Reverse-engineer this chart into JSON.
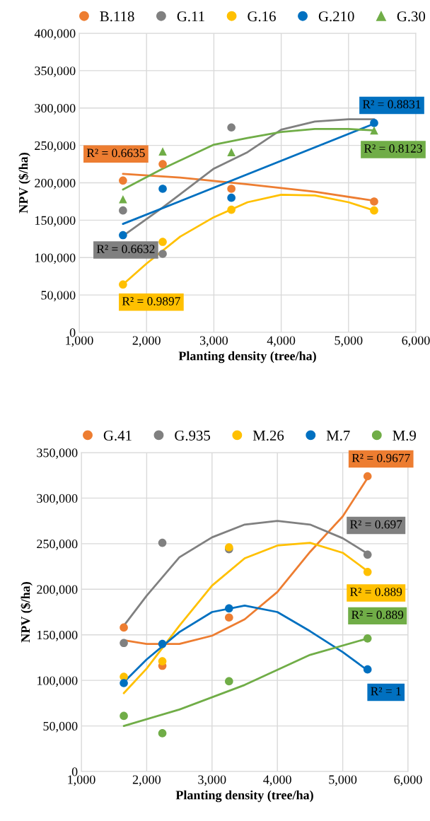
{
  "chart_data": [
    {
      "type": "scatter",
      "xlabel": "Planting density (tree/ha)",
      "ylabel": "NPV ($/ha)",
      "grid": true,
      "legend": "top",
      "xlim": [
        1000,
        6000
      ],
      "ylim": [
        0,
        400000
      ],
      "xticks": [
        {
          "value": 1000,
          "label": "1,000"
        },
        {
          "value": 2000,
          "label": "2,000"
        },
        {
          "value": 3000,
          "label": "3,000"
        },
        {
          "value": 4000,
          "label": "4,000"
        },
        {
          "value": 5000,
          "label": "5,000"
        },
        {
          "value": 6000,
          "label": "6,000"
        }
      ],
      "yticks": [
        0,
        {
          "value": 50000,
          "label": "50,000"
        },
        {
          "value": 100000,
          "label": "100,000"
        },
        {
          "value": 150000,
          "label": "150,000"
        },
        {
          "value": 200000,
          "label": "200,000"
        },
        {
          "value": 250000,
          "label": "250,000"
        },
        {
          "value": 300000,
          "label": "300,000"
        },
        {
          "value": 350000,
          "label": "350,000"
        },
        {
          "value": 400000,
          "label": "400,000"
        }
      ],
      "x": [
        1650,
        2240,
        3260,
        5380
      ],
      "series": [
        {
          "name": "B.118",
          "color": "#ed7d31",
          "marker": "circle",
          "values": [
            203000,
            225000,
            192000,
            175000
          ]
        },
        {
          "name": "G.11",
          "color": "#808080",
          "marker": "circle",
          "values": [
            163000,
            105000,
            274000,
            null
          ]
        },
        {
          "name": "G.16",
          "color": "#ffc000",
          "marker": "circle",
          "values": [
            64000,
            121000,
            164000,
            163000
          ]
        },
        {
          "name": "G.210",
          "color": "#0070c0",
          "marker": "circle",
          "values": [
            130000,
            192000,
            180000,
            280000
          ]
        },
        {
          "name": "G.30",
          "color": "#70ad47",
          "marker": "triangle",
          "values": [
            178000,
            242000,
            241000,
            270000
          ]
        },
        {
          "type": "line",
          "color": "#ed7d31",
          "x": [
            1650,
            2500,
            3500,
            4500,
            5380
          ],
          "values": [
            212000,
            207000,
            198000,
            188000,
            176000
          ]
        },
        {
          "type": "line",
          "color": "#808080",
          "x": [
            1650,
            2240,
            3000,
            3500,
            4000,
            4500,
            5000,
            5380
          ],
          "values": [
            129000,
            167000,
            219000,
            241000,
            271000,
            282000,
            285000,
            285000
          ]
        },
        {
          "type": "line",
          "color": "#ffc000",
          "x": [
            1650,
            2000,
            2500,
            3000,
            3500,
            4000,
            4500,
            5000,
            5380
          ],
          "values": [
            64000,
            92000,
            128000,
            154000,
            174000,
            184000,
            183000,
            174000,
            163000
          ]
        },
        {
          "type": "line",
          "color": "#0070c0",
          "x": [
            1650,
            5380
          ],
          "values": [
            145000,
            279000
          ]
        },
        {
          "type": "line",
          "color": "#70ad47",
          "x": [
            1650,
            2240,
            3000,
            3500,
            4000,
            4500,
            5000,
            5380
          ],
          "values": [
            191000,
            219000,
            251000,
            260000,
            268000,
            272000,
            272000,
            270000
          ]
        }
      ],
      "annotations": [
        "R² = 0.6635",
        "R² = 0.6632",
        "R² = 0.9897",
        "R² = 0.8831",
        "R² = 0.8123"
      ]
    },
    {
      "type": "scatter",
      "xlabel": "Planting density (tree/ha)",
      "ylabel": "NPV ($/ha)",
      "grid": true,
      "legend": "top",
      "xlim": [
        1000,
        6000
      ],
      "ylim": [
        0,
        350000
      ],
      "xticks": [
        {
          "value": 1000,
          "label": "1,000"
        },
        {
          "value": 2000,
          "label": "2,000"
        },
        {
          "value": 3000,
          "label": "3,000"
        },
        {
          "value": 4000,
          "label": "4,000"
        },
        {
          "value": 5000,
          "label": "5,000"
        },
        {
          "value": 6000,
          "label": "6,000"
        }
      ],
      "yticks": [
        0,
        {
          "value": 50000,
          "label": "50,000"
        },
        {
          "value": 100000,
          "label": "100,000"
        },
        {
          "value": 150000,
          "label": "150,000"
        },
        {
          "value": 200000,
          "label": "200,000"
        },
        {
          "value": 250000,
          "label": "250,000"
        },
        {
          "value": 300000,
          "label": "300,000"
        },
        {
          "value": 350000,
          "label": "350,000"
        }
      ],
      "x": [
        1650,
        2240,
        3260,
        5380
      ],
      "series": [
        {
          "name": "G.41",
          "color": "#ed7d31",
          "marker": "circle",
          "values": [
            158000,
            116000,
            169000,
            324000
          ]
        },
        {
          "name": "G.935",
          "color": "#808080",
          "marker": "circle",
          "values": [
            141000,
            251000,
            244000,
            238000
          ]
        },
        {
          "name": "M.26",
          "color": "#ffc000",
          "marker": "circle",
          "values": [
            104000,
            121000,
            246000,
            219000
          ]
        },
        {
          "name": "M.7",
          "color": "#0070c0",
          "marker": "circle",
          "values": [
            97000,
            140000,
            179000,
            112000
          ]
        },
        {
          "name": "M.9",
          "color": "#70ad47",
          "marker": "circle",
          "values": [
            61000,
            42000,
            99000,
            146000
          ]
        },
        {
          "type": "line",
          "color": "#ed7d31",
          "x": [
            1650,
            2000,
            2500,
            3000,
            3500,
            4000,
            4500,
            5000,
            5380
          ],
          "values": [
            144000,
            140000,
            140000,
            149000,
            167000,
            197000,
            241000,
            280000,
            322000
          ]
        },
        {
          "type": "line",
          "color": "#808080",
          "x": [
            1650,
            2000,
            2500,
            3000,
            3500,
            4000,
            4500,
            5000,
            5380
          ],
          "values": [
            160000,
            193000,
            235000,
            257000,
            271000,
            275000,
            271000,
            256000,
            239000
          ]
        },
        {
          "type": "line",
          "color": "#ffc000",
          "x": [
            1650,
            2000,
            2500,
            3000,
            3500,
            4000,
            4500,
            5000,
            5380
          ],
          "values": [
            86000,
            113000,
            160000,
            204000,
            234000,
            248000,
            251000,
            240000,
            220000
          ]
        },
        {
          "type": "line",
          "color": "#0070c0",
          "x": [
            1650,
            2000,
            2500,
            3000,
            3500,
            4000,
            4500,
            5000,
            5380
          ],
          "values": [
            98000,
            123000,
            153000,
            175000,
            182000,
            175000,
            154000,
            131000,
            111000
          ]
        },
        {
          "type": "line",
          "color": "#70ad47",
          "x": [
            1650,
            2500,
            3500,
            4500,
            5380
          ],
          "values": [
            50000,
            68000,
            95000,
            128000,
            146000
          ]
        }
      ],
      "annotations": [
        "R² = 0.9677",
        "R² = 0.697",
        "R² = 0.889",
        "R² = 1",
        "R² = 0.889"
      ]
    }
  ]
}
